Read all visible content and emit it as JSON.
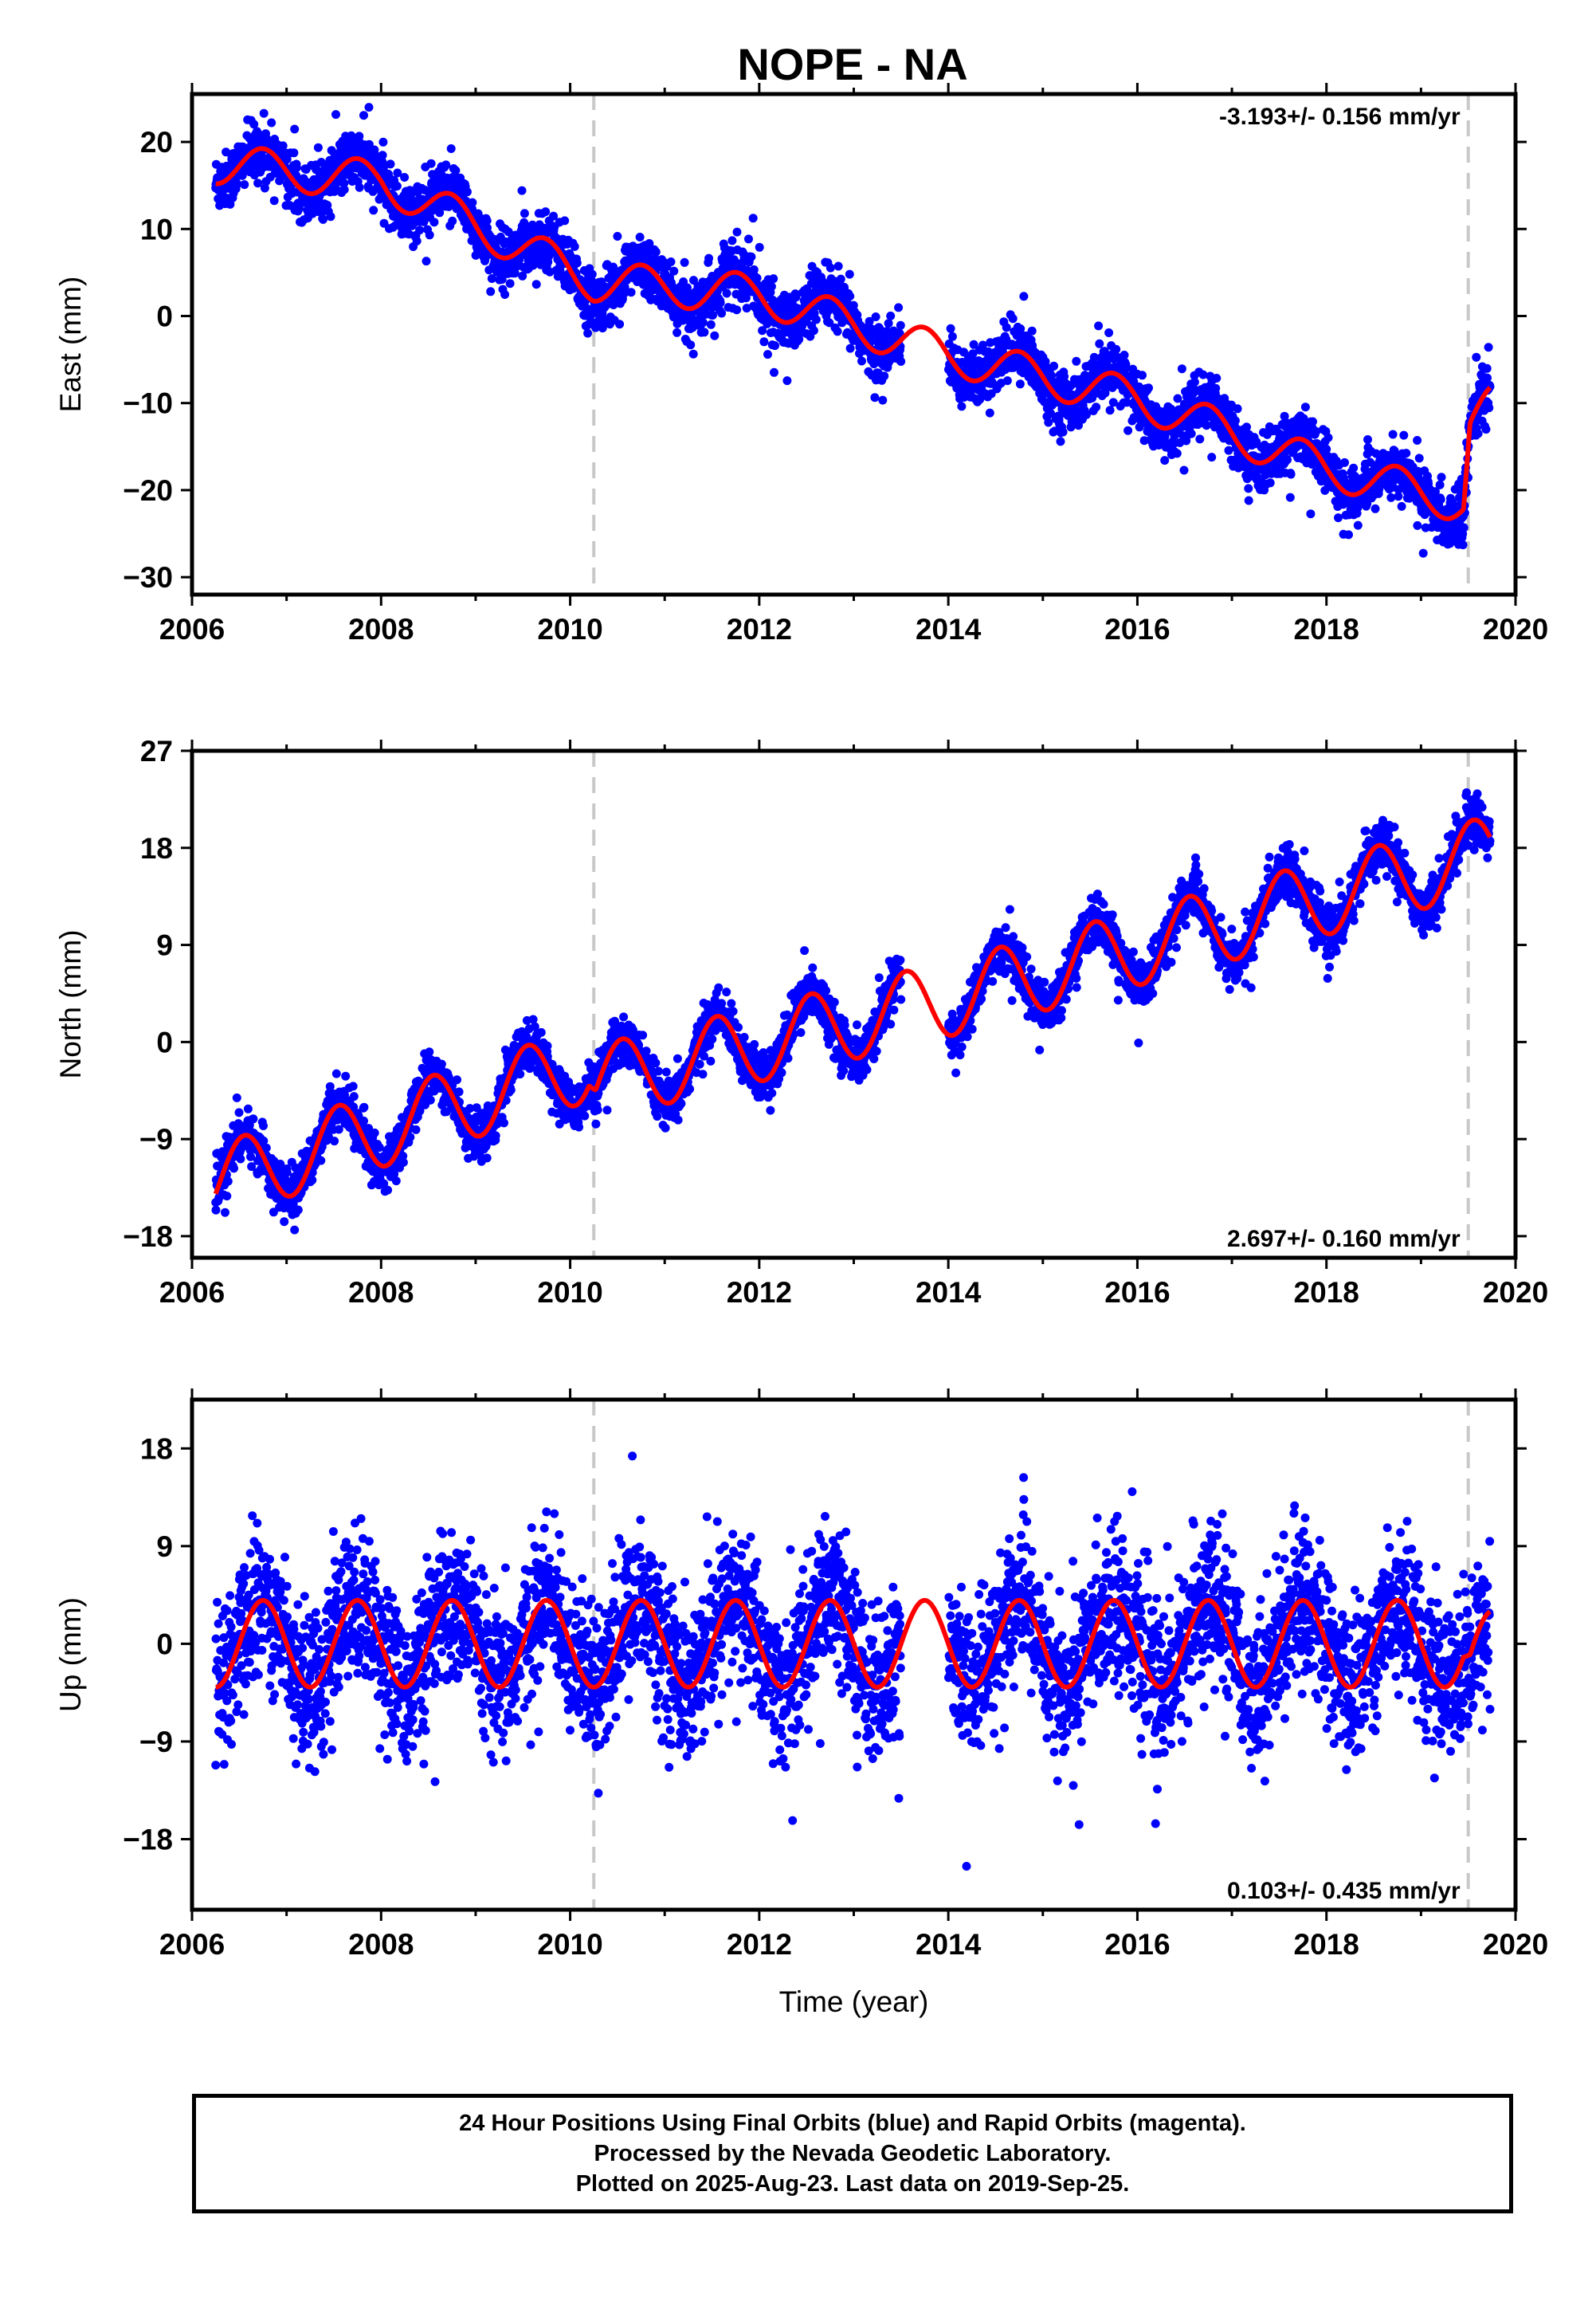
{
  "title": "NOPE - NA",
  "colors": {
    "final_orbit_points": "#0000ff",
    "model_line": "#ff0000",
    "offset_lines": "#c8c8c8",
    "frame": "#000000"
  },
  "footer": {
    "line1": "24 Hour Positions Using Final Orbits (blue) and Rapid Orbits (magenta).",
    "line2": "Processed by the Nevada Geodetic Laboratory.",
    "line3": "Plotted on 2025-Aug-23. Last data on 2019-Sep-25."
  },
  "chart_data": [
    {
      "type": "scatter",
      "ylabel": "East (mm)",
      "xlabel": "",
      "rate_label": "-3.193+/- 0.156 mm/yr",
      "rate_position": "top-right",
      "xlim": [
        2006,
        2020
      ],
      "ylim": [
        -32,
        25.5
      ],
      "xticks": [
        2006,
        2008,
        2010,
        2012,
        2014,
        2016,
        2018,
        2020
      ],
      "yticks": [
        20,
        10,
        0,
        -10,
        -20,
        -30
      ],
      "ytick_labels": [
        "20",
        "10",
        "0",
        "−10",
        "−20",
        "−30"
      ],
      "offset_lines": [
        2010.25,
        2019.5
      ],
      "data_start": 2006.25,
      "data_end": 2019.73,
      "gap": [
        2013.5,
        2014.0
      ],
      "series": [
        {
          "kind": "points",
          "trend_knots": [
            [
              2006.25,
              17.5
            ],
            [
              2008.0,
              15.5
            ],
            [
              2010.25,
              4.0
            ],
            [
              2012.0,
              2.5
            ],
            [
              2014.0,
              -4.5
            ],
            [
              2016.0,
              -9.5
            ],
            [
              2018.0,
              -17.5
            ],
            [
              2019.45,
              -21.5
            ],
            [
              2019.52,
              -12.5
            ],
            [
              2019.73,
              -10.5
            ]
          ],
          "seasonal_amplitude": 2.3,
          "seasonal_phase_year": 2006.75,
          "noise_sd": 1.6,
          "count": 4200
        },
        {
          "kind": "model_line",
          "trend_knots": [
            [
              2006.25,
              17.5
            ],
            [
              2008.0,
              15.5
            ],
            [
              2010.25,
              4.0
            ],
            [
              2012.0,
              2.5
            ],
            [
              2014.0,
              -4.5
            ],
            [
              2016.0,
              -9.5
            ],
            [
              2018.0,
              -17.5
            ],
            [
              2019.45,
              -21.5
            ],
            [
              2019.52,
              -12.5
            ],
            [
              2019.73,
              -10.5
            ]
          ],
          "seasonal_amplitude": 2.3,
          "seasonal_phase_year": 2006.75
        }
      ]
    },
    {
      "type": "scatter",
      "ylabel": "North (mm)",
      "xlabel": "",
      "rate_label": "2.697+/- 0.160 mm/yr",
      "rate_position": "bottom-right",
      "xlim": [
        2006,
        2020
      ],
      "ylim": [
        -20,
        27
      ],
      "xticks": [
        2006,
        2008,
        2010,
        2012,
        2014,
        2016,
        2018,
        2020
      ],
      "yticks": [
        27,
        18,
        9,
        0,
        -9,
        -18
      ],
      "ytick_labels": [
        "27",
        "18",
        "9",
        "0",
        "−9",
        "−18"
      ],
      "offset_lines": [
        2010.25,
        2019.5
      ],
      "data_start": 2006.25,
      "data_end": 2019.73,
      "gap": [
        2013.5,
        2014.0
      ],
      "series": [
        {
          "kind": "points",
          "trend_knots": [
            [
              2006.25,
              -13.0
            ],
            [
              2010.2,
              -2.0
            ],
            [
              2010.27,
              -3.8
            ],
            [
              2014.0,
              4.0
            ],
            [
              2019.73,
              17.5
            ]
          ],
          "seasonal_amplitude": 3.5,
          "seasonal_phase_year": 2006.55,
          "noise_sd": 1.1,
          "count": 4200
        },
        {
          "kind": "model_line",
          "trend_knots": [
            [
              2006.25,
              -13.0
            ],
            [
              2010.2,
              -2.0
            ],
            [
              2010.27,
              -3.8
            ],
            [
              2014.0,
              4.0
            ],
            [
              2019.73,
              17.5
            ]
          ],
          "seasonal_amplitude": 3.5,
          "seasonal_phase_year": 2006.55
        }
      ]
    },
    {
      "type": "scatter",
      "ylabel": "Up (mm)",
      "xlabel": "Time (year)",
      "rate_label": "0.103+/- 0.435 mm/yr",
      "rate_position": "bottom-right",
      "xlim": [
        2006,
        2020
      ],
      "ylim": [
        -24.5,
        22.5
      ],
      "xticks": [
        2006,
        2008,
        2010,
        2012,
        2014,
        2016,
        2018,
        2020
      ],
      "yticks": [
        18,
        9,
        0,
        -9,
        -18
      ],
      "ytick_labels": [
        "18",
        "9",
        "0",
        "−9",
        "−18"
      ],
      "offset_lines": [
        2010.25,
        2019.5
      ],
      "data_start": 2006.25,
      "data_end": 2019.73,
      "gap": [
        2013.5,
        2014.0
      ],
      "series": [
        {
          "kind": "points",
          "trend_knots": [
            [
              2006.25,
              0.0
            ],
            [
              2019.45,
              0.0
            ],
            [
              2019.52,
              -1.5
            ],
            [
              2019.73,
              -1.0
            ]
          ],
          "seasonal_amplitude": 4.0,
          "seasonal_phase_year": 2006.75,
          "noise_sd": 3.4,
          "count": 4200
        },
        {
          "kind": "model_line",
          "trend_knots": [
            [
              2006.25,
              0.0
            ],
            [
              2019.45,
              0.0
            ],
            [
              2019.52,
              -1.5
            ],
            [
              2019.73,
              -1.0
            ]
          ],
          "seasonal_amplitude": 4.0,
          "seasonal_phase_year": 2006.75
        }
      ]
    }
  ]
}
